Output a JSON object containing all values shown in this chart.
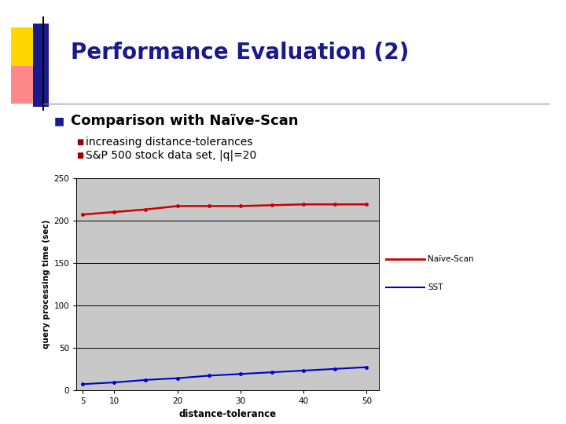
{
  "slide_title": "Performance Evaluation (2)",
  "bullet1": "Comparison with Naïve-Scan",
  "sub_bullet1": "increasing distance-tolerances",
  "sub_bullet2": "S&P 500 stock data set, |q|=20",
  "x_values": [
    5,
    10,
    15,
    20,
    25,
    30,
    35,
    40,
    45,
    50
  ],
  "naive_scan_y": [
    207,
    210,
    213,
    217,
    217,
    217,
    218,
    219,
    219,
    219
  ],
  "sst_y": [
    7,
    9,
    12,
    14,
    17,
    19,
    21,
    23,
    25,
    27
  ],
  "xlabel": "distance-tolerance",
  "ylabel": "query processing time (sec)",
  "ylim": [
    0,
    250
  ],
  "yticks": [
    0,
    50,
    100,
    150,
    200,
    250
  ],
  "xticks": [
    5,
    10,
    20,
    30,
    40,
    50
  ],
  "naive_color": "#cc0000",
  "sst_color": "#0000cc",
  "legend_naive": "Naïve-Scan",
  "legend_sst": "SST",
  "slide_bg": "#ffffff",
  "title_color": "#1a1a8c",
  "bullet_color": "#000000",
  "bullet_marker_color": "#1a1a8c",
  "sub_bullet_marker_color": "#990000",
  "chart_bg": "#c8c8c8",
  "deco_yellow": "#FFD700",
  "deco_pink": "#FF8888",
  "deco_blue": "#1a1a8c"
}
